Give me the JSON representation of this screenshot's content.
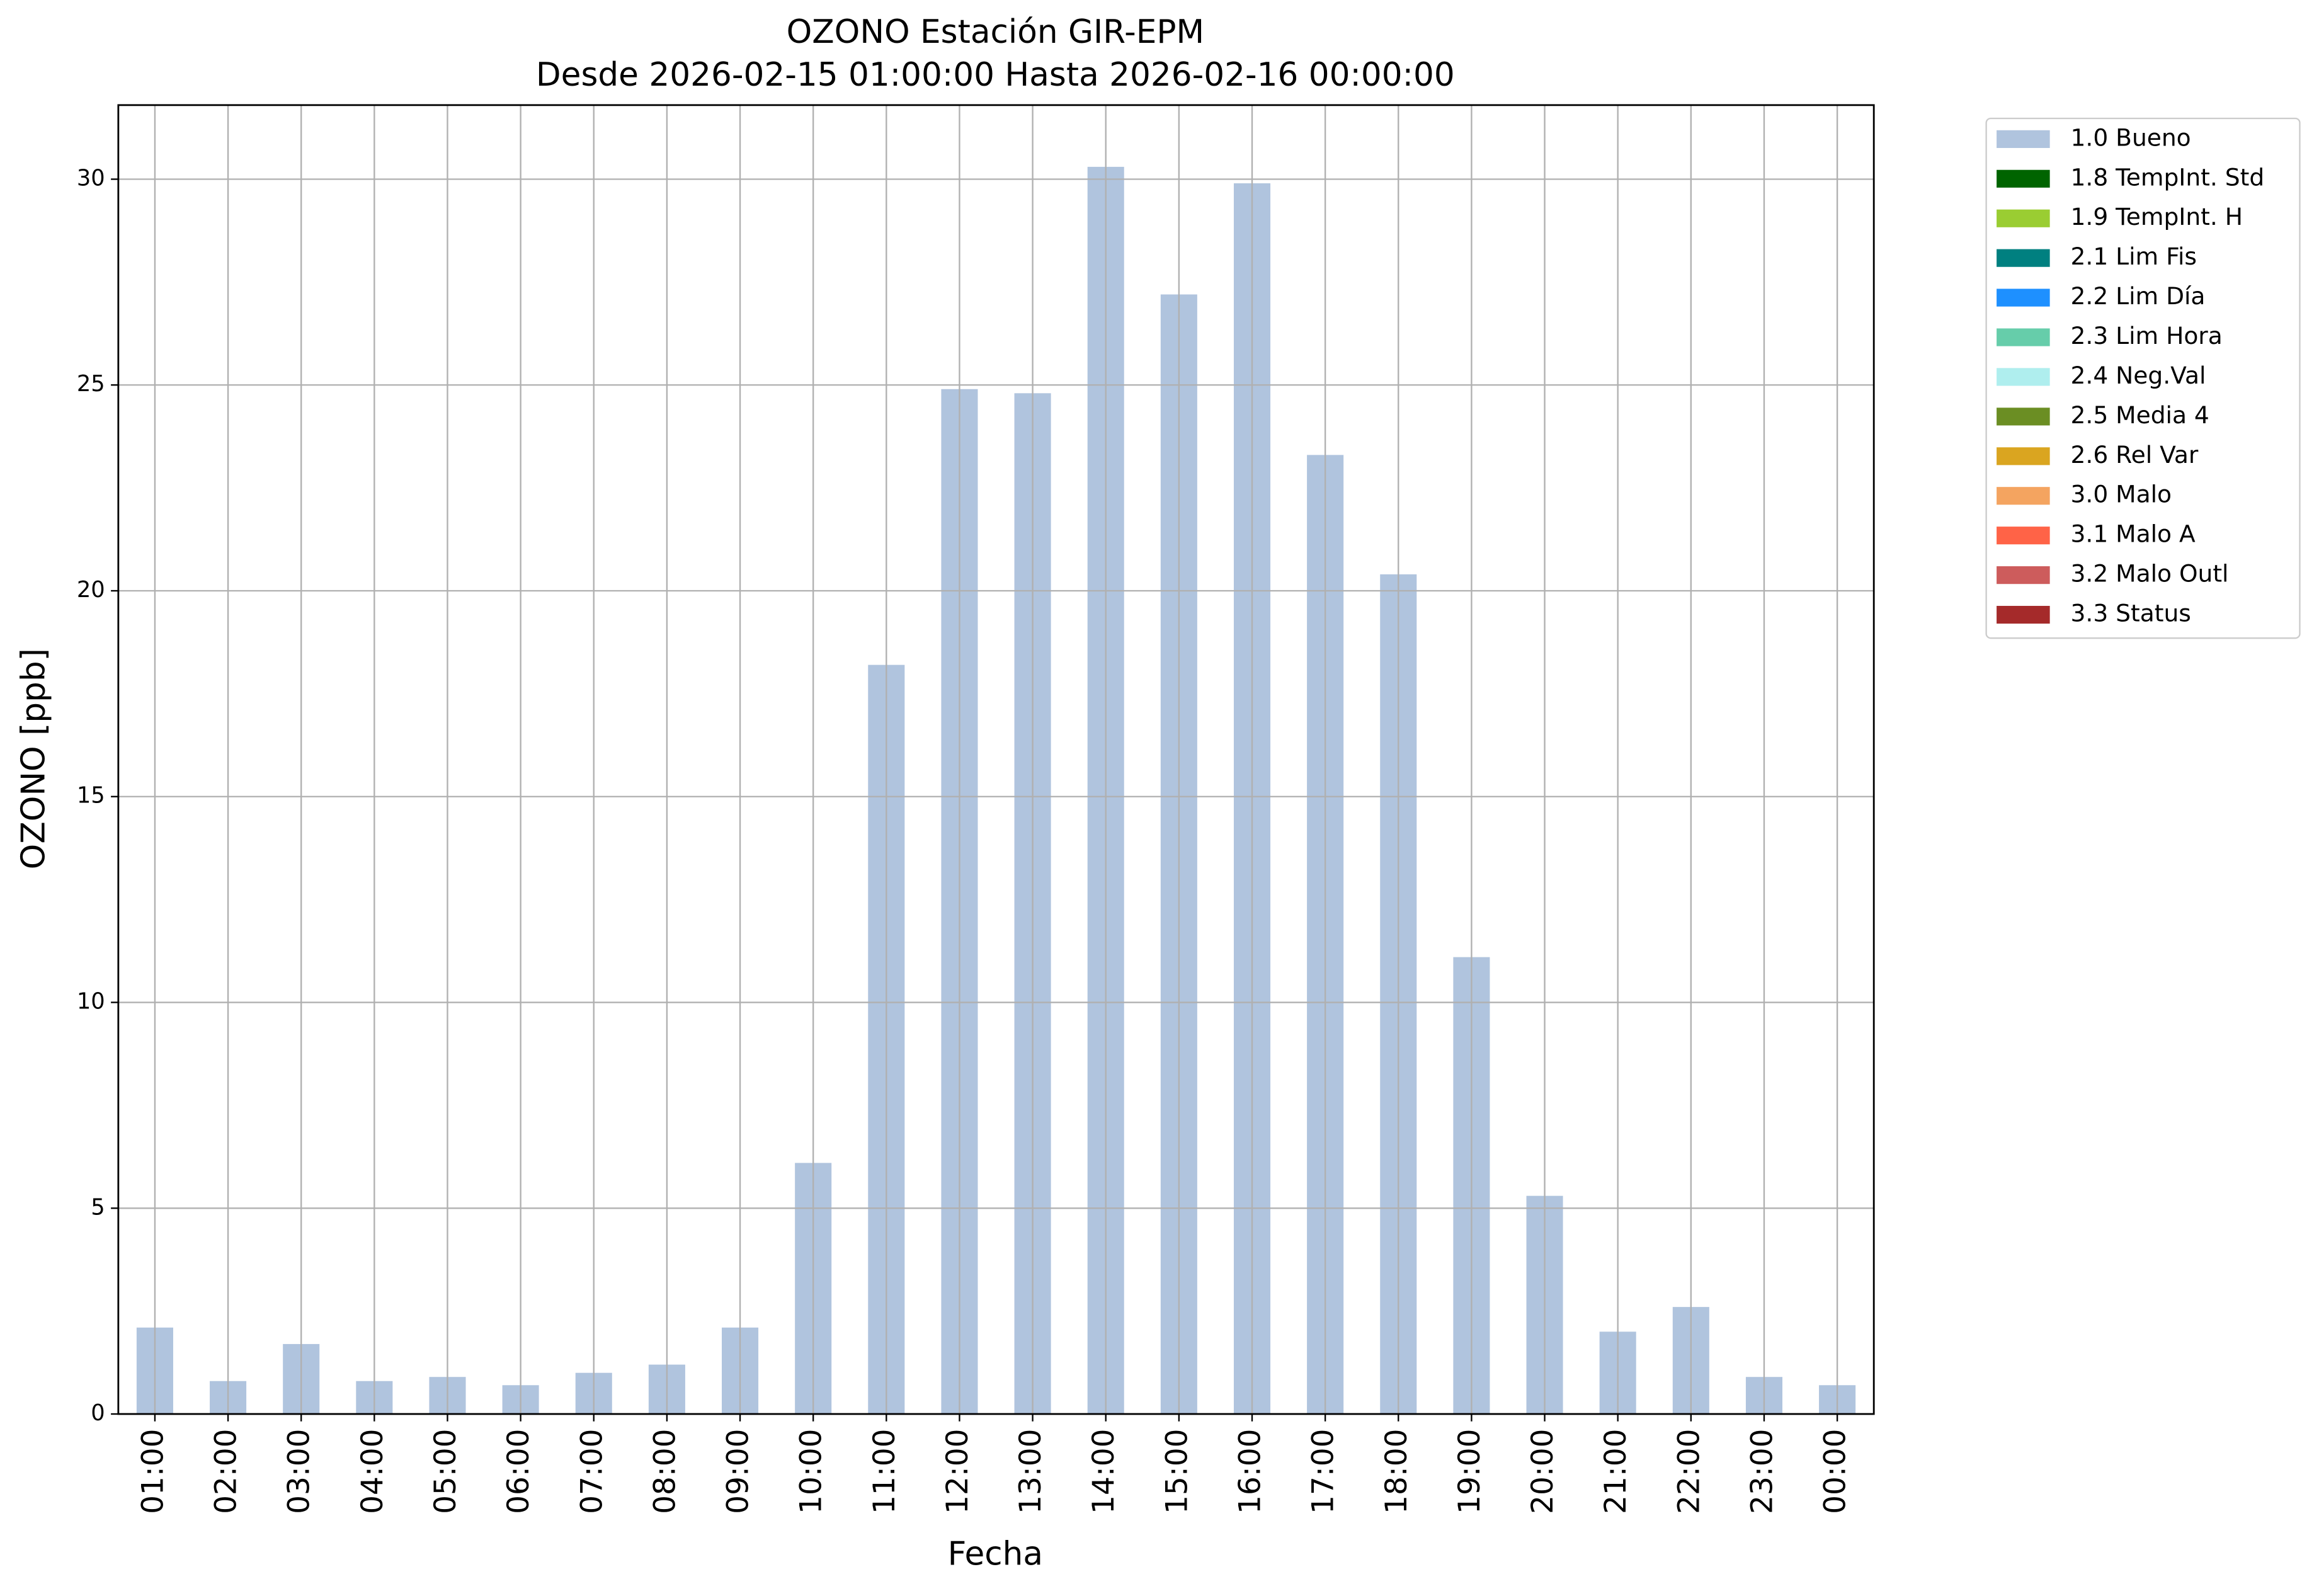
{
  "chart_data": {
    "type": "bar",
    "title": "OZONO Estación GIR-EPM",
    "subtitle": "Desde 2026-02-15 01:00:00 Hasta 2026-02-16 00:00:00",
    "x_label": "Fecha",
    "y_label": "OZONO [ppb]",
    "categories": [
      "01:00",
      "02:00",
      "03:00",
      "04:00",
      "05:00",
      "06:00",
      "07:00",
      "08:00",
      "09:00",
      "10:00",
      "11:00",
      "12:00",
      "13:00",
      "14:00",
      "15:00",
      "16:00",
      "17:00",
      "18:00",
      "19:00",
      "20:00",
      "21:00",
      "22:00",
      "23:00",
      "00:00"
    ],
    "series": [
      {
        "name": "1.0 Bueno",
        "color": "#b0c4de",
        "values": [
          2.1,
          0.8,
          1.7,
          0.8,
          0.9,
          0.7,
          1.0,
          1.2,
          2.1,
          6.1,
          18.2,
          24.9,
          24.8,
          30.3,
          27.2,
          29.9,
          23.3,
          20.4,
          11.1,
          5.3,
          2.0,
          2.6,
          0.9,
          0.7
        ]
      },
      {
        "name": "1.8 TempInt. Std",
        "color": "#006400",
        "values": [
          null,
          null,
          null,
          null,
          null,
          null,
          null,
          null,
          null,
          null,
          null,
          null,
          null,
          null,
          null,
          null,
          null,
          null,
          null,
          null,
          null,
          null,
          null,
          null
        ]
      },
      {
        "name": "1.9 TempInt. H",
        "color": "#9acd32",
        "values": [
          null,
          null,
          null,
          null,
          null,
          null,
          null,
          null,
          null,
          null,
          null,
          null,
          null,
          null,
          null,
          null,
          null,
          null,
          null,
          null,
          null,
          null,
          null,
          null
        ]
      },
      {
        "name": "2.1 Lim Fis",
        "color": "#008080",
        "values": [
          null,
          null,
          null,
          null,
          null,
          null,
          null,
          null,
          null,
          null,
          null,
          null,
          null,
          null,
          null,
          null,
          null,
          null,
          null,
          null,
          null,
          null,
          null,
          null
        ]
      },
      {
        "name": "2.2 Lim Día",
        "color": "#1e90ff",
        "values": [
          null,
          null,
          null,
          null,
          null,
          null,
          null,
          null,
          null,
          null,
          null,
          null,
          null,
          null,
          null,
          null,
          null,
          null,
          null,
          null,
          null,
          null,
          null,
          null
        ]
      },
      {
        "name": "2.3 Lim Hora",
        "color": "#66cdaa",
        "values": [
          null,
          null,
          null,
          null,
          null,
          null,
          null,
          null,
          null,
          null,
          null,
          null,
          null,
          null,
          null,
          null,
          null,
          null,
          null,
          null,
          null,
          null,
          null,
          null
        ]
      },
      {
        "name": "2.4 Neg.Val",
        "color": "#afeeee",
        "values": [
          null,
          null,
          null,
          null,
          null,
          null,
          null,
          null,
          null,
          null,
          null,
          null,
          null,
          null,
          null,
          null,
          null,
          null,
          null,
          null,
          null,
          null,
          null,
          null
        ]
      },
      {
        "name": "2.5 Media 4",
        "color": "#6b8e23",
        "values": [
          null,
          null,
          null,
          null,
          null,
          null,
          null,
          null,
          null,
          null,
          null,
          null,
          null,
          null,
          null,
          null,
          null,
          null,
          null,
          null,
          null,
          null,
          null,
          null
        ]
      },
      {
        "name": "2.6 Rel Var",
        "color": "#daa520",
        "values": [
          null,
          null,
          null,
          null,
          null,
          null,
          null,
          null,
          null,
          null,
          null,
          null,
          null,
          null,
          null,
          null,
          null,
          null,
          null,
          null,
          null,
          null,
          null,
          null
        ]
      },
      {
        "name": "3.0 Malo",
        "color": "#f4a460",
        "values": [
          null,
          null,
          null,
          null,
          null,
          null,
          null,
          null,
          null,
          null,
          null,
          null,
          null,
          null,
          null,
          null,
          null,
          null,
          null,
          null,
          null,
          null,
          null,
          null
        ]
      },
      {
        "name": "3.1 Malo A",
        "color": "#ff6347",
        "values": [
          null,
          null,
          null,
          null,
          null,
          null,
          null,
          null,
          null,
          null,
          null,
          null,
          null,
          null,
          null,
          null,
          null,
          null,
          null,
          null,
          null,
          null,
          null,
          null
        ]
      },
      {
        "name": "3.2 Malo Outl",
        "color": "#cd5c5c",
        "values": [
          null,
          null,
          null,
          null,
          null,
          null,
          null,
          null,
          null,
          null,
          null,
          null,
          null,
          null,
          null,
          null,
          null,
          null,
          null,
          null,
          null,
          null,
          null,
          null
        ]
      },
      {
        "name": "3.3 Status",
        "color": "#a52a2a",
        "values": [
          null,
          null,
          null,
          null,
          null,
          null,
          null,
          null,
          null,
          null,
          null,
          null,
          null,
          null,
          null,
          null,
          null,
          null,
          null,
          null,
          null,
          null,
          null,
          null
        ]
      }
    ],
    "ylim": [
      0,
      31.8
    ],
    "yticks": [
      0,
      5,
      10,
      15,
      20,
      25,
      30
    ],
    "grid": true,
    "stacked": true,
    "legend": "outside-upper-right"
  }
}
